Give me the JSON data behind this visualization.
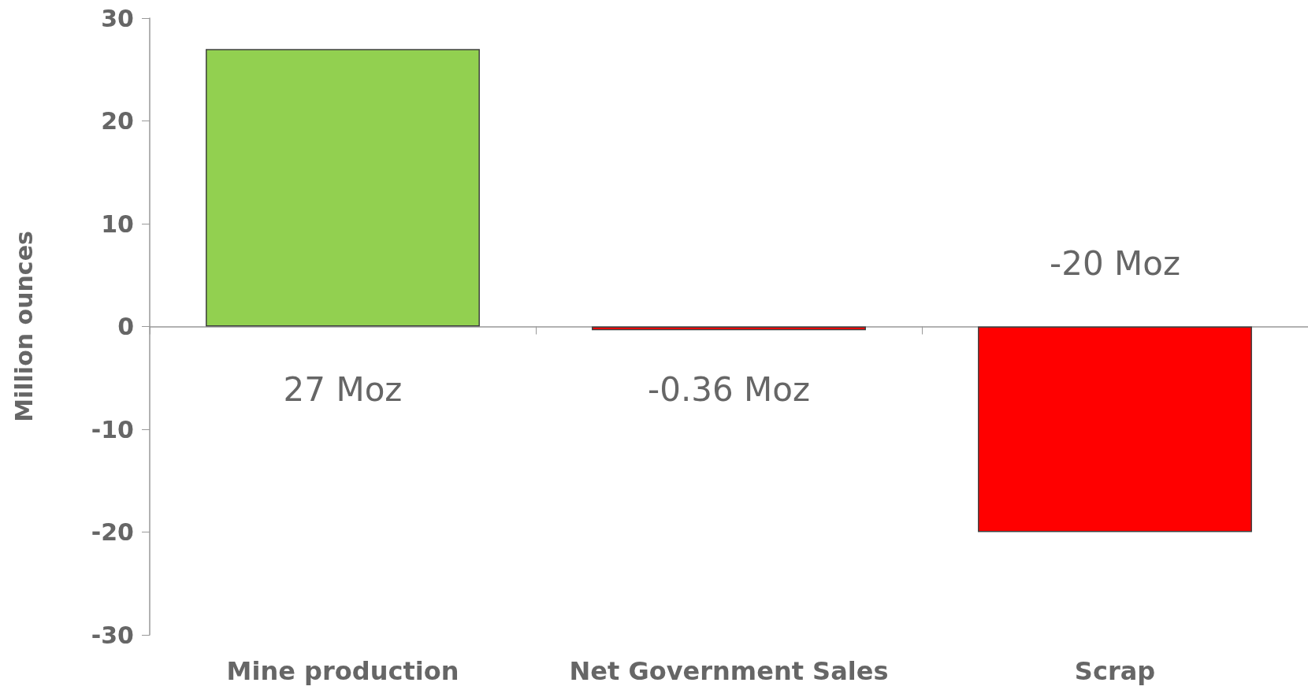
{
  "chart_data": {
    "type": "bar",
    "ylabel": "Million ounces",
    "categories": [
      "Mine production",
      "Net Government Sales",
      "Scrap"
    ],
    "values": [
      27,
      -0.36,
      -20
    ],
    "value_labels": [
      "27 Moz",
      "-0.36 Moz",
      "-20 Moz"
    ],
    "colors": [
      "#92d050",
      "#ff0000",
      "#ff0000"
    ],
    "ylim": [
      -30,
      30
    ],
    "yticks": [
      -30,
      -20,
      -10,
      0,
      10,
      20,
      30
    ]
  }
}
